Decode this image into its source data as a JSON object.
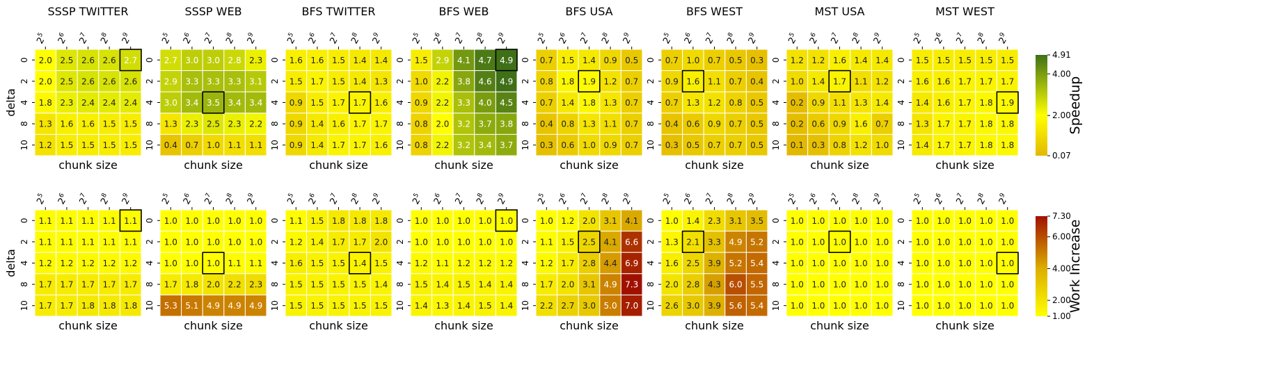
{
  "shared": {
    "xlabel": "chunk size",
    "ylabel": "delta",
    "x_tick_labels": [
      {
        "base": "2",
        "exp": "5"
      },
      {
        "base": "2",
        "exp": "6"
      },
      {
        "base": "2",
        "exp": "7"
      },
      {
        "base": "2",
        "exp": "8"
      },
      {
        "base": "2",
        "exp": "9"
      }
    ],
    "y_tick_labels": [
      "0",
      "2",
      "4",
      "8",
      "10"
    ]
  },
  "colorbars": {
    "speedup": {
      "label": "Speedup",
      "min": 0.07,
      "max": 4.91,
      "ticks": [
        "4.91",
        "4.00",
        "2.00",
        "0.07"
      ],
      "tick_values": [
        4.91,
        4.0,
        2.0,
        0.07
      ],
      "colors": [
        "#e3b800",
        "#ffff00",
        "#3e7018"
      ]
    },
    "work": {
      "label": "Work Increase",
      "min": 1.0,
      "max": 7.3,
      "ticks": [
        "7.30",
        "6.00",
        "4.00",
        "2.00",
        "1.00"
      ],
      "tick_values": [
        7.3,
        6.0,
        4.0,
        2.0,
        1.0
      ],
      "colors": [
        "#ffff00",
        "#dcae00",
        "#a01000"
      ]
    }
  },
  "chart_data": [
    {
      "type": "heatmap",
      "title": "SSSP TWITTER",
      "metric": "speedup",
      "values": [
        [
          "2.0",
          "2.5",
          "2.6",
          "2.6",
          "2.7"
        ],
        [
          "2.0",
          "2.5",
          "2.6",
          "2.6",
          "2.6"
        ],
        [
          "1.8",
          "2.3",
          "2.4",
          "2.4",
          "2.4"
        ],
        [
          "1.3",
          "1.6",
          "1.6",
          "1.5",
          "1.5"
        ],
        [
          "1.2",
          "1.5",
          "1.5",
          "1.5",
          "1.5"
        ]
      ],
      "highlight": [
        0,
        4
      ]
    },
    {
      "type": "heatmap",
      "title": "SSSP WEB",
      "metric": "speedup",
      "values": [
        [
          "2.7",
          "3.0",
          "3.0",
          "2.8",
          "2.3"
        ],
        [
          "2.9",
          "3.3",
          "3.3",
          "3.3",
          "3.1"
        ],
        [
          "3.0",
          "3.4",
          "3.5",
          "3.4",
          "3.4"
        ],
        [
          "1.3",
          "2.3",
          "2.5",
          "2.3",
          "2.2"
        ],
        [
          "0.4",
          "0.7",
          "1.0",
          "1.1",
          "1.1"
        ]
      ],
      "highlight": [
        2,
        2
      ]
    },
    {
      "type": "heatmap",
      "title": "BFS TWITTER",
      "metric": "speedup",
      "values": [
        [
          "1.6",
          "1.6",
          "1.5",
          "1.4",
          "1.4"
        ],
        [
          "1.5",
          "1.7",
          "1.5",
          "1.4",
          "1.3"
        ],
        [
          "0.9",
          "1.5",
          "1.7",
          "1.7",
          "1.6"
        ],
        [
          "0.9",
          "1.4",
          "1.6",
          "1.7",
          "1.7"
        ],
        [
          "0.9",
          "1.4",
          "1.7",
          "1.7",
          "1.6"
        ]
      ],
      "highlight": [
        2,
        3
      ]
    },
    {
      "type": "heatmap",
      "title": "BFS WEB",
      "metric": "speedup",
      "values": [
        [
          "1.5",
          "2.9",
          "4.1",
          "4.7",
          "4.9"
        ],
        [
          "1.0",
          "2.2",
          "3.8",
          "4.6",
          "4.9"
        ],
        [
          "0.9",
          "2.2",
          "3.3",
          "4.0",
          "4.5"
        ],
        [
          "0.8",
          "2.0",
          "3.2",
          "3.7",
          "3.8"
        ],
        [
          "0.8",
          "2.2",
          "3.2",
          "3.4",
          "3.7"
        ]
      ],
      "highlight": [
        0,
        4
      ]
    },
    {
      "type": "heatmap",
      "title": "BFS USA",
      "metric": "speedup",
      "values": [
        [
          "0.7",
          "1.5",
          "1.4",
          "0.9",
          "0.5"
        ],
        [
          "0.8",
          "1.8",
          "1.9",
          "1.2",
          "0.7"
        ],
        [
          "0.7",
          "1.4",
          "1.8",
          "1.3",
          "0.7"
        ],
        [
          "0.4",
          "0.8",
          "1.3",
          "1.1",
          "0.7"
        ],
        [
          "0.3",
          "0.6",
          "1.0",
          "0.9",
          "0.7"
        ]
      ],
      "highlight": [
        1,
        2
      ]
    },
    {
      "type": "heatmap",
      "title": "BFS WEST",
      "metric": "speedup",
      "values": [
        [
          "0.7",
          "1.0",
          "0.7",
          "0.5",
          "0.3"
        ],
        [
          "0.9",
          "1.6",
          "1.1",
          "0.7",
          "0.4"
        ],
        [
          "0.7",
          "1.3",
          "1.2",
          "0.8",
          "0.5"
        ],
        [
          "0.4",
          "0.6",
          "0.9",
          "0.7",
          "0.5"
        ],
        [
          "0.3",
          "0.5",
          "0.7",
          "0.7",
          "0.5"
        ]
      ],
      "highlight": [
        1,
        1
      ]
    },
    {
      "type": "heatmap",
      "title": "MST USA",
      "metric": "speedup",
      "values": [
        [
          "1.2",
          "1.2",
          "1.6",
          "1.4",
          "1.4"
        ],
        [
          "1.0",
          "1.4",
          "1.7",
          "1.1",
          "1.2"
        ],
        [
          "0.2",
          "0.9",
          "1.1",
          "1.3",
          "1.4"
        ],
        [
          "0.2",
          "0.6",
          "0.9",
          "1.6",
          "0.7"
        ],
        [
          "0.1",
          "0.3",
          "0.8",
          "1.2",
          "1.0"
        ]
      ],
      "highlight": [
        1,
        2
      ]
    },
    {
      "type": "heatmap",
      "title": "MST WEST",
      "metric": "speedup",
      "values": [
        [
          "1.5",
          "1.5",
          "1.5",
          "1.5",
          "1.5"
        ],
        [
          "1.6",
          "1.6",
          "1.7",
          "1.7",
          "1.7"
        ],
        [
          "1.4",
          "1.6",
          "1.7",
          "1.8",
          "1.9"
        ],
        [
          "1.3",
          "1.7",
          "1.7",
          "1.8",
          "1.8"
        ],
        [
          "1.4",
          "1.7",
          "1.7",
          "1.8",
          "1.8"
        ]
      ],
      "highlight": [
        2,
        4
      ]
    },
    {
      "type": "heatmap",
      "title": "",
      "metric": "work",
      "values": [
        [
          "1.1",
          "1.1",
          "1.1",
          "1.1",
          "1.1"
        ],
        [
          "1.1",
          "1.1",
          "1.1",
          "1.1",
          "1.1"
        ],
        [
          "1.2",
          "1.2",
          "1.2",
          "1.2",
          "1.2"
        ],
        [
          "1.7",
          "1.7",
          "1.7",
          "1.7",
          "1.7"
        ],
        [
          "1.7",
          "1.7",
          "1.8",
          "1.8",
          "1.8"
        ]
      ],
      "highlight": [
        0,
        4
      ]
    },
    {
      "type": "heatmap",
      "title": "",
      "metric": "work",
      "values": [
        [
          "1.0",
          "1.0",
          "1.0",
          "1.0",
          "1.0"
        ],
        [
          "1.0",
          "1.0",
          "1.0",
          "1.0",
          "1.0"
        ],
        [
          "1.0",
          "1.0",
          "1.0",
          "1.1",
          "1.1"
        ],
        [
          "1.7",
          "1.8",
          "2.0",
          "2.2",
          "2.3"
        ],
        [
          "5.3",
          "5.1",
          "4.9",
          "4.9",
          "4.9"
        ]
      ],
      "highlight": [
        2,
        2
      ]
    },
    {
      "type": "heatmap",
      "title": "",
      "metric": "work",
      "values": [
        [
          "1.1",
          "1.5",
          "1.8",
          "1.8",
          "1.8"
        ],
        [
          "1.2",
          "1.4",
          "1.7",
          "1.7",
          "2.0"
        ],
        [
          "1.6",
          "1.5",
          "1.5",
          "1.4",
          "1.5"
        ],
        [
          "1.5",
          "1.5",
          "1.5",
          "1.5",
          "1.4"
        ],
        [
          "1.5",
          "1.5",
          "1.5",
          "1.5",
          "1.5"
        ]
      ],
      "highlight": [
        2,
        3
      ]
    },
    {
      "type": "heatmap",
      "title": "",
      "metric": "work",
      "values": [
        [
          "1.0",
          "1.0",
          "1.0",
          "1.0",
          "1.0"
        ],
        [
          "1.0",
          "1.0",
          "1.0",
          "1.0",
          "1.0"
        ],
        [
          "1.2",
          "1.1",
          "1.2",
          "1.2",
          "1.2"
        ],
        [
          "1.5",
          "1.4",
          "1.5",
          "1.4",
          "1.4"
        ],
        [
          "1.4",
          "1.3",
          "1.4",
          "1.5",
          "1.4"
        ]
      ],
      "highlight": [
        0,
        4
      ]
    },
    {
      "type": "heatmap",
      "title": "",
      "metric": "work",
      "values": [
        [
          "1.0",
          "1.2",
          "2.0",
          "3.1",
          "4.1"
        ],
        [
          "1.1",
          "1.5",
          "2.5",
          "4.1",
          "6.6"
        ],
        [
          "1.2",
          "1.7",
          "2.8",
          "4.4",
          "6.9"
        ],
        [
          "1.7",
          "2.0",
          "3.1",
          "4.9",
          "7.3"
        ],
        [
          "2.2",
          "2.7",
          "3.0",
          "5.0",
          "7.0"
        ]
      ],
      "highlight": [
        1,
        2
      ]
    },
    {
      "type": "heatmap",
      "title": "",
      "metric": "work",
      "values": [
        [
          "1.0",
          "1.4",
          "2.3",
          "3.1",
          "3.5"
        ],
        [
          "1.3",
          "2.1",
          "3.3",
          "4.9",
          "5.2"
        ],
        [
          "1.6",
          "2.5",
          "3.9",
          "5.2",
          "5.4"
        ],
        [
          "2.0",
          "2.8",
          "4.3",
          "6.0",
          "5.5"
        ],
        [
          "2.6",
          "3.0",
          "3.9",
          "5.6",
          "5.4"
        ]
      ],
      "highlight": [
        1,
        1
      ]
    },
    {
      "type": "heatmap",
      "title": "",
      "metric": "work",
      "values": [
        [
          "1.0",
          "1.0",
          "1.0",
          "1.0",
          "1.0"
        ],
        [
          "1.0",
          "1.0",
          "1.0",
          "1.0",
          "1.0"
        ],
        [
          "1.0",
          "1.0",
          "1.0",
          "1.0",
          "1.0"
        ],
        [
          "1.0",
          "1.0",
          "1.0",
          "1.0",
          "1.0"
        ],
        [
          "1.0",
          "1.0",
          "1.0",
          "1.0",
          "1.0"
        ]
      ],
      "highlight": [
        1,
        2
      ]
    },
    {
      "type": "heatmap",
      "title": "",
      "metric": "work",
      "values": [
        [
          "1.0",
          "1.0",
          "1.0",
          "1.0",
          "1.0"
        ],
        [
          "1.0",
          "1.0",
          "1.0",
          "1.0",
          "1.0"
        ],
        [
          "1.0",
          "1.0",
          "1.0",
          "1.0",
          "1.0"
        ],
        [
          "1.0",
          "1.0",
          "1.0",
          "1.0",
          "1.0"
        ],
        [
          "1.0",
          "1.0",
          "1.0",
          "1.0",
          "1.0"
        ]
      ],
      "highlight": [
        2,
        4
      ]
    }
  ]
}
